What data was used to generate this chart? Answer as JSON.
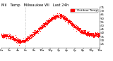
{
  "title": "Mil   Temp   Milwaukee WI   Last 24h",
  "legend_label": "Outdoor Temp",
  "legend_color": "#ff0000",
  "dot_color": "#ff0000",
  "background_color": "#ffffff",
  "plot_bg_color": "#ffffff",
  "ylim": [
    20,
    75
  ],
  "grid_color": "#cccccc",
  "vline_x": 0.25,
  "title_fontsize": 3.8,
  "tick_fontsize": 2.8,
  "legend_fontsize": 3.0,
  "dot_size": 0.5,
  "noise_std": 1.5
}
